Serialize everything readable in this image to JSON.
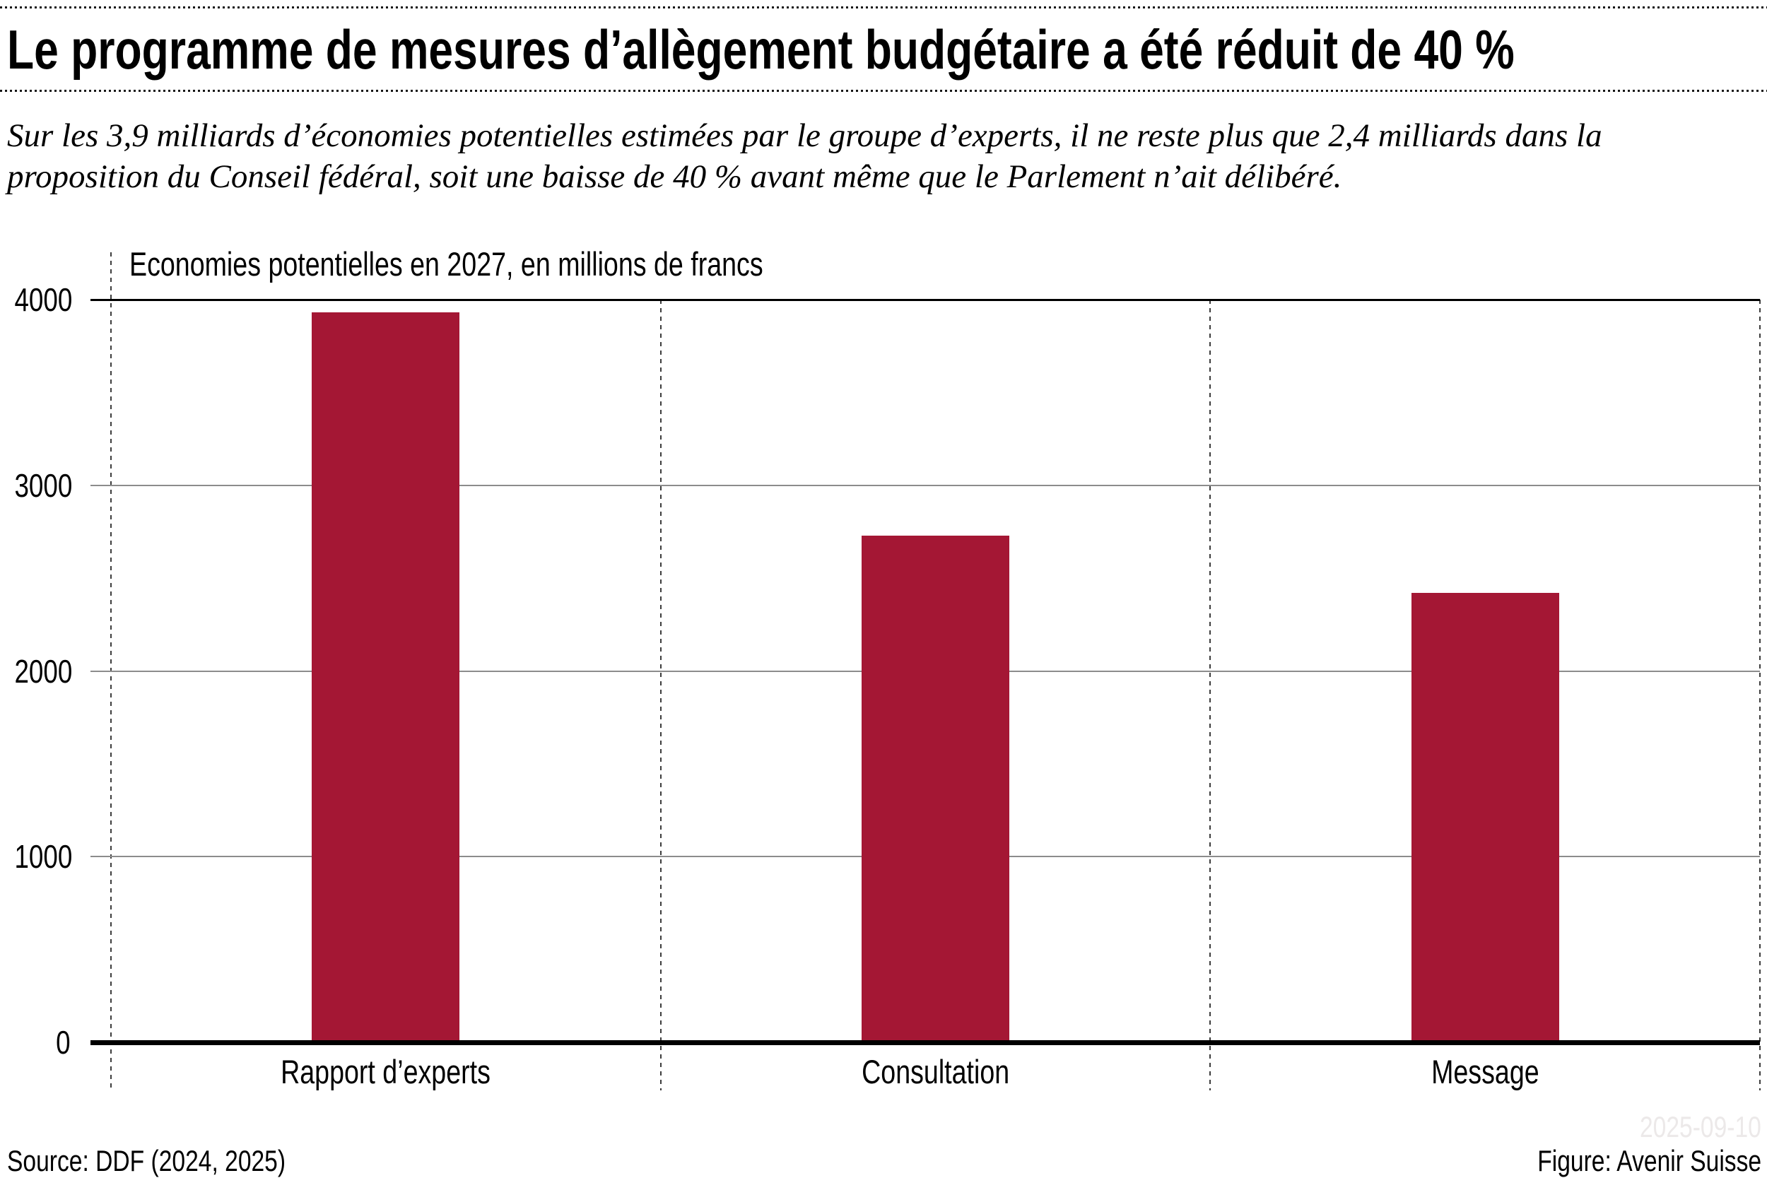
{
  "page": {
    "background": "#ffffff"
  },
  "header": {
    "title": "Le programme de mesures d’allègement budgétaire a été réduit de 40 %",
    "subtitle_lines": [
      "Sur les 3,9 milliards d’économies potentielles estimées par le groupe d’experts, il ne reste plus que 2,4 milliards dans la",
      "proposition du Conseil fédéral, soit une baisse de 40 % avant même que le Parlement n’ait délibéré."
    ]
  },
  "chart_data": {
    "type": "bar",
    "title": "Economies potentielles en 2027, en millions de francs",
    "categories": [
      "Rapport d’experts",
      "Consultation",
      "Message"
    ],
    "values": [
      3930,
      2730,
      2420
    ],
    "xlabel": "",
    "ylabel": "millions de francs",
    "ylim": [
      0,
      4000
    ],
    "yticks": [
      0,
      1000,
      2000,
      3000,
      4000
    ],
    "grid": "horizontal gray lines, dashed vertical section separators",
    "legend": "none",
    "bar_color": "#a41734"
  },
  "footer": {
    "source": "Source: DDF (2024, 2025)",
    "figure": "Figure: Avenir Suisse",
    "watermark": "2025-09-10"
  },
  "colors": {
    "bar": "#a41734",
    "gridline_gray": "#8c8c8c",
    "axis_black": "#000000",
    "dashed_gray": "#3c3c3c",
    "watermark": "#ece9e9",
    "text": "#000000"
  }
}
